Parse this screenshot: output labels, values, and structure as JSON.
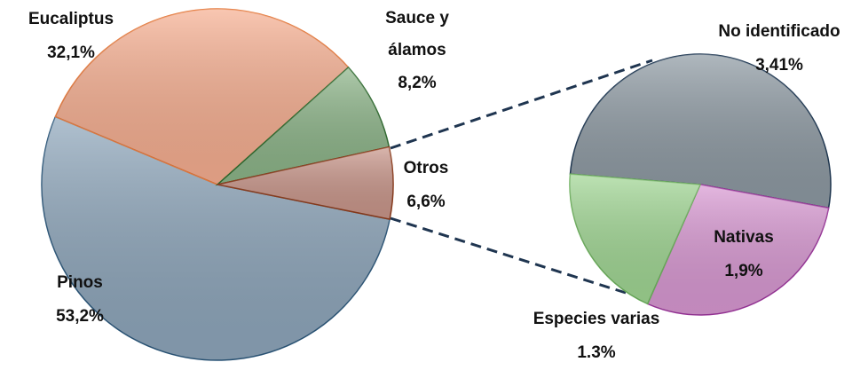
{
  "chart_data": [
    {
      "type": "pie",
      "categories": [
        "Pinos",
        "Eucaliptus",
        "Sauce y álamos",
        "Otros"
      ],
      "values": [
        53.2,
        32.1,
        8.2,
        6.6
      ],
      "value_labels": [
        "53,2%",
        "32,1%",
        "8,2%",
        "6,6%"
      ],
      "colors": [
        "#8ea6bb",
        "#f6ae90",
        "#8cb488",
        "#c9968a"
      ],
      "edgecolors": [
        "#2a5578",
        "#e57a3e",
        "#2d6a2d",
        "#8b3a1a"
      ]
    },
    {
      "type": "pie",
      "categories": [
        "No identificado",
        "Nativas",
        "Especies varias"
      ],
      "values": [
        3.41,
        1.9,
        1.3
      ],
      "value_labels": [
        "3,41%",
        "1,9%",
        "1.3%"
      ],
      "colors": [
        "#8d99a2",
        "#d898d2",
        "#a0d693"
      ],
      "edgecolors": [
        "#1c3550",
        "#993399",
        "#6aae5a"
      ]
    }
  ]
}
